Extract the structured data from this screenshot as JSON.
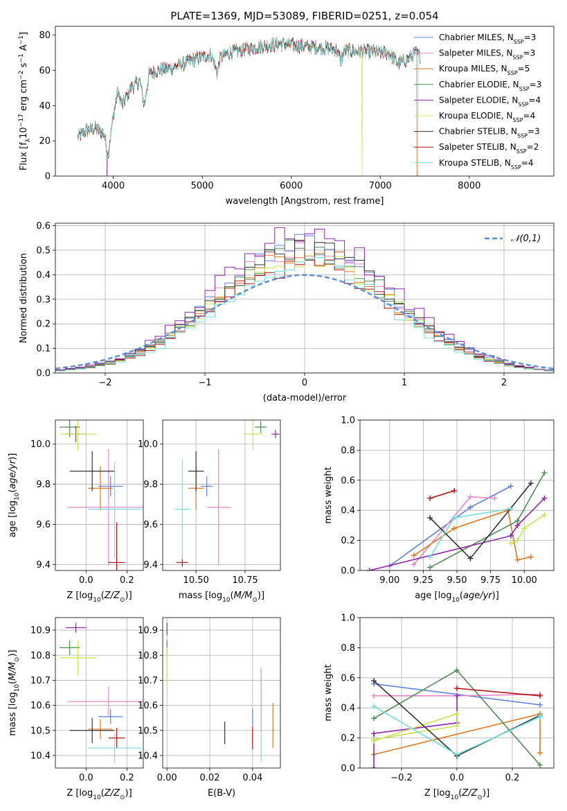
{
  "chart_data": [
    {
      "type": "line",
      "title": "PLATE=1369, MJD=53089, FIBERID=0251, z=0.054",
      "xlabel": "wavelength [Angstrom, rest frame]",
      "ylabel": "Flux [f_λ 10^-17 erg cm^-2 s^-1 A^-1]",
      "xlim": [
        3350,
        8950
      ],
      "ylim": [
        0,
        85
      ],
      "xticks": [
        4000,
        5000,
        6000,
        7000,
        8000
      ],
      "yticks": [
        0,
        20,
        40,
        60,
        80
      ],
      "grid": false,
      "legend_position": "top-right",
      "spectrum_x_range": [
        3600,
        7450
      ],
      "spectrum_shape": {
        "x": [
          3600,
          3700,
          3800,
          3900,
          3940,
          4000,
          4050,
          4100,
          4200,
          4300,
          4350,
          4400,
          4500,
          4700,
          4900,
          5100,
          5170,
          5200,
          5300,
          5500,
          5700,
          5900,
          6100,
          6300,
          6500,
          6560,
          6600,
          6800,
          7000,
          7100,
          7200,
          7300,
          7400,
          7450
        ],
        "y": [
          22,
          26,
          27,
          24,
          12,
          34,
          48,
          40,
          50,
          54,
          40,
          58,
          60,
          62,
          66,
          69,
          58,
          67,
          70,
          72,
          74,
          75,
          74,
          73,
          72,
          66,
          71,
          71,
          70,
          70,
          64,
          66,
          70,
          68
        ]
      },
      "drops": [
        {
          "x": 3930,
          "series": "Salpeter ELODIE"
        },
        {
          "x": 6795,
          "series": "Kroupa ELODIE"
        },
        {
          "x": 7415,
          "series": "Kroupa MILES"
        }
      ],
      "series": [
        {
          "name": "Chabrier MILES, N_SSP=3",
          "color": "#5b7fd8"
        },
        {
          "name": "Salpeter MILES, N_SSP=3",
          "color": "#e887c4"
        },
        {
          "name": "Kroupa MILES, N_SSP=5",
          "color": "#e0761d"
        },
        {
          "name": "Chabrier ELODIE, N_SSP=3",
          "color": "#4f8a53"
        },
        {
          "name": "Salpeter ELODIE, N_SSP=4",
          "color": "#8e22a8"
        },
        {
          "name": "Kroupa ELODIE, N_SSP=4",
          "color": "#c7e354"
        },
        {
          "name": "Chabrier STELIB, N_SSP=3",
          "color": "#333333"
        },
        {
          "name": "Salpeter STELIB, N_SSP=2",
          "color": "#b20f0f"
        },
        {
          "name": "Kroupa STELIB, N_SSP=4",
          "color": "#70dede"
        }
      ]
    },
    {
      "type": "histogram",
      "xlabel": "(data-model)/error",
      "ylabel": "Normed distribution",
      "xlim": [
        -2.5,
        2.5
      ],
      "ylim": [
        0,
        0.61
      ],
      "xticks": [
        -2,
        -1,
        0,
        1,
        2
      ],
      "yticks": [
        0.0,
        0.1,
        0.2,
        0.3,
        0.4,
        0.5,
        0.6
      ],
      "grid": true,
      "legend_position": "top-right",
      "reference_curve": {
        "label": "𝒩(0,1)",
        "mean": 0,
        "sigma": 1,
        "color": "#5b8bd8"
      },
      "bin_width": 0.1,
      "bin_range": [
        -2.5,
        2.5
      ],
      "peak_values": [
        0.52,
        0.5,
        0.49,
        0.5,
        0.58,
        0.47,
        0.51,
        0.45,
        0.43
      ],
      "series_colors": [
        "#5b7fd8",
        "#e887c4",
        "#e0761d",
        "#4f8a53",
        "#8e22a8",
        "#c7e354",
        "#333333",
        "#b20f0f",
        "#70dede"
      ]
    },
    {
      "type": "errorbar",
      "xlabel": "Z [log10(Z/Z⊙)]",
      "ylabel": "age  [log10(age/yr)]",
      "xlim": [
        -0.15,
        0.28
      ],
      "ylim": [
        9.37,
        10.12
      ],
      "xticks": [
        0.0,
        0.2
      ],
      "yticks": [
        9.4,
        9.6,
        9.8,
        10.0
      ],
      "grid": true,
      "points": [
        {
          "series": "Chabrier MILES",
          "x": 0.12,
          "y": 9.79,
          "xerr": 0.06,
          "yerr": 0.05
        },
        {
          "series": "Salpeter MILES",
          "x": 0.11,
          "y": 9.685,
          "xerr": 0.2,
          "yerr": 0.29
        },
        {
          "series": "Kroupa MILES",
          "x": 0.07,
          "y": 9.78,
          "xerr": 0.06,
          "yerr": 0.11
        },
        {
          "series": "Chabrier ELODIE",
          "x": -0.08,
          "y": 10.085,
          "xerr": 0.05,
          "yerr": 0.05
        },
        {
          "series": "Salpeter ELODIE",
          "x": -0.05,
          "y": 10.05,
          "xerr": 0.05,
          "yerr": 0.04
        },
        {
          "series": "Kroupa ELODIE",
          "x": -0.04,
          "y": 10.05,
          "xerr": 0.09,
          "yerr": 0.08
        },
        {
          "series": "Chabrier STELIB",
          "x": 0.03,
          "y": 9.865,
          "xerr": 0.11,
          "yerr": 0.1
        },
        {
          "series": "Salpeter STELIB",
          "x": 0.15,
          "y": 9.41,
          "xerr": 0.04,
          "yerr": 0.2
        },
        {
          "series": "Kroupa STELIB",
          "x": 0.14,
          "y": 9.675,
          "xerr": 0.13,
          "yerr": 0.24
        }
      ]
    },
    {
      "type": "errorbar",
      "xlabel": "mass [log10(M/M⊙)]",
      "ylabel": "",
      "xlim": [
        10.33,
        10.93
      ],
      "ylim": [
        9.37,
        10.12
      ],
      "xticks": [
        10.5,
        10.75
      ],
      "yticks": [
        9.4,
        9.6,
        9.8,
        10.0
      ],
      "grid": true,
      "points": [
        {
          "series": "Chabrier MILES",
          "x": 10.555,
          "y": 9.79,
          "xerr": 0.03,
          "yerr": 0.05
        },
        {
          "series": "Salpeter MILES",
          "x": 10.615,
          "y": 9.685,
          "xerr": 0.06,
          "yerr": 0.29
        },
        {
          "series": "Kroupa MILES",
          "x": 10.5,
          "y": 9.78,
          "xerr": 0.04,
          "yerr": 0.11
        },
        {
          "series": "Chabrier ELODIE",
          "x": 10.83,
          "y": 10.085,
          "xerr": 0.03,
          "yerr": 0.03
        },
        {
          "series": "Salpeter ELODIE",
          "x": 10.905,
          "y": 10.05,
          "xerr": 0.02,
          "yerr": 0.02
        },
        {
          "series": "Kroupa ELODIE",
          "x": 10.79,
          "y": 10.05,
          "xerr": 0.05,
          "yerr": 0.08
        },
        {
          "series": "Chabrier STELIB",
          "x": 10.5,
          "y": 9.865,
          "xerr": 0.04,
          "yerr": 0.1
        },
        {
          "series": "Salpeter STELIB",
          "x": 10.43,
          "y": 9.41,
          "xerr": 0.03,
          "yerr": 0.02
        },
        {
          "series": "Kroupa STELIB",
          "x": 10.43,
          "y": 9.675,
          "xerr": 0.04,
          "yerr": 0.25
        }
      ]
    },
    {
      "type": "line",
      "xlabel": "age  [log10(age/yr)]",
      "ylabel": "mass weight",
      "xlim": [
        8.78,
        10.22
      ],
      "ylim": [
        0,
        1
      ],
      "xticks": [
        9.0,
        9.25,
        9.5,
        9.75,
        10.0
      ],
      "yticks": [
        0.0,
        0.2,
        0.4,
        0.6,
        0.8,
        1.0
      ],
      "grid": true,
      "series": [
        {
          "name": "Chabrier MILES",
          "x": [
            9.0,
            9.6,
            9.9
          ],
          "y": [
            0.03,
            0.42,
            0.56
          ]
        },
        {
          "name": "Salpeter MILES",
          "x": [
            9.18,
            9.6,
            9.78
          ],
          "y": [
            0.04,
            0.49,
            0.48
          ]
        },
        {
          "name": "Kroupa MILES",
          "x": [
            9.18,
            9.48,
            9.88,
            9.95,
            10.05
          ],
          "y": [
            0.1,
            0.28,
            0.4,
            0.07,
            0.09
          ]
        },
        {
          "name": "Chabrier ELODIE",
          "x": [
            9.3,
            9.95,
            10.15
          ],
          "y": [
            0.02,
            0.33,
            0.65
          ]
        },
        {
          "name": "Salpeter ELODIE",
          "x": [
            8.85,
            9.9,
            9.95,
            10.15
          ],
          "y": [
            0.0,
            0.23,
            0.3,
            0.48
          ]
        },
        {
          "name": "Kroupa ELODIE",
          "x": [
            9.9,
            9.95,
            10.0,
            10.15
          ],
          "y": [
            0.18,
            0.2,
            0.28,
            0.37
          ]
        },
        {
          "name": "Chabrier STELIB",
          "x": [
            9.3,
            9.6,
            10.05
          ],
          "y": [
            0.35,
            0.08,
            0.58
          ]
        },
        {
          "name": "Salpeter STELIB",
          "x": [
            9.3,
            9.48
          ],
          "y": [
            0.48,
            0.53
          ]
        },
        {
          "name": "Kroupa STELIB",
          "x": [
            9.3,
            9.48,
            9.9
          ],
          "y": [
            0.09,
            0.35,
            0.41
          ]
        }
      ]
    },
    {
      "type": "errorbar",
      "xlabel": "Z [log10(Z/Z⊙)]",
      "ylabel": "mass [log10(M/M⊙)]",
      "xlim": [
        -0.15,
        0.28
      ],
      "ylim": [
        10.35,
        10.95
      ],
      "xticks": [
        0.0,
        0.2
      ],
      "yticks": [
        10.4,
        10.5,
        10.6,
        10.7,
        10.8,
        10.9
      ],
      "grid": true,
      "points": [
        {
          "series": "Chabrier MILES",
          "x": 0.12,
          "y": 10.555,
          "xerr": 0.06,
          "yerr": 0.03
        },
        {
          "series": "Salpeter MILES",
          "x": 0.11,
          "y": 10.615,
          "xerr": 0.2,
          "yerr": 0.06
        },
        {
          "series": "Kroupa MILES",
          "x": 0.07,
          "y": 10.505,
          "xerr": 0.06,
          "yerr": 0.04
        },
        {
          "series": "Chabrier ELODIE",
          "x": -0.08,
          "y": 10.83,
          "xerr": 0.05,
          "yerr": 0.03
        },
        {
          "series": "Salpeter ELODIE",
          "x": -0.05,
          "y": 10.91,
          "xerr": 0.05,
          "yerr": 0.02
        },
        {
          "series": "Kroupa ELODIE",
          "x": -0.04,
          "y": 10.79,
          "xerr": 0.09,
          "yerr": 0.07
        },
        {
          "series": "Chabrier STELIB",
          "x": 0.03,
          "y": 10.5,
          "xerr": 0.11,
          "yerr": 0.05
        },
        {
          "series": "Salpeter STELIB",
          "x": 0.15,
          "y": 10.47,
          "xerr": 0.04,
          "yerr": 0.04
        },
        {
          "series": "Kroupa STELIB",
          "x": 0.14,
          "y": 10.43,
          "xerr": 0.13,
          "yerr": 0.06
        }
      ]
    },
    {
      "type": "errorbar",
      "xlabel": "E(B-V)",
      "ylabel": "",
      "xlim": [
        -0.002,
        0.053
      ],
      "ylim": [
        10.35,
        10.95
      ],
      "xticks": [
        0.0,
        0.02,
        0.04
      ],
      "yticks": [
        10.4,
        10.5,
        10.6,
        10.7,
        10.8,
        10.9
      ],
      "grid": true,
      "points": [
        {
          "series": "Chabrier MILES",
          "x": 0.04,
          "y": 10.55,
          "xerr": 0.0,
          "yerr": 0.035
        },
        {
          "series": "Salpeter MILES",
          "x": 0.044,
          "y": 10.62,
          "xerr": 0.0,
          "yerr": 0.13
        },
        {
          "series": "Kroupa MILES",
          "x": 0.0495,
          "y": 10.52,
          "xerr": 0.0,
          "yerr": 0.09
        },
        {
          "series": "Chabrier ELODIE",
          "x": 0.0,
          "y": 10.83,
          "xerr": 0.0,
          "yerr": 0.03
        },
        {
          "series": "Salpeter ELODIE",
          "x": 0.0,
          "y": 10.905,
          "xerr": 0.0,
          "yerr": 0.025
        },
        {
          "series": "Kroupa ELODIE",
          "x": 0.0,
          "y": 10.76,
          "xerr": 0.0,
          "yerr": 0.07
        },
        {
          "series": "Chabrier STELIB",
          "x": 0.027,
          "y": 10.49,
          "xerr": 0.0,
          "yerr": 0.045
        },
        {
          "series": "Salpeter STELIB",
          "x": 0.04,
          "y": 10.47,
          "xerr": 0.0,
          "yerr": 0.045
        },
        {
          "series": "Kroupa STELIB",
          "x": 0.044,
          "y": 10.43,
          "xerr": 0.0,
          "yerr": 0.055
        }
      ]
    },
    {
      "type": "line",
      "xlabel": "Z [log10(Z/Z⊙)]",
      "ylabel": "mass weight",
      "xlim": [
        -0.35,
        0.35
      ],
      "ylim": [
        0,
        1
      ],
      "xticks": [
        -0.2,
        0.0,
        0.2
      ],
      "yticks": [
        0.0,
        0.2,
        0.4,
        0.6,
        0.8,
        1.0
      ],
      "grid": true,
      "series": [
        {
          "name": "Chabrier MILES",
          "x": [
            -0.3,
            0.3
          ],
          "y": [
            0.56,
            0.42
          ]
        },
        {
          "name": "Salpeter MILES",
          "x": [
            -0.3,
            0.0,
            0.3
          ],
          "y": [
            0.48,
            0.48,
            0.49
          ]
        },
        {
          "name": "Kroupa MILES",
          "x": [
            -0.3,
            0.3,
            0.3
          ],
          "y": [
            0.09,
            0.36,
            0.1
          ]
        },
        {
          "name": "Chabrier ELODIE",
          "x": [
            -0.3,
            0.0,
            0.3
          ],
          "y": [
            0.33,
            0.65,
            0.02
          ]
        },
        {
          "name": "Salpeter ELODIE",
          "x": [
            -0.3,
            -0.3,
            0.0,
            0.0
          ],
          "y": [
            0.0,
            0.23,
            0.3,
            0.48
          ]
        },
        {
          "name": "Kroupa ELODIE",
          "x": [
            -0.3,
            0.0,
            0.0,
            -0.3
          ],
          "y": [
            0.19,
            0.28,
            0.36,
            0.18
          ]
        },
        {
          "name": "Chabrier STELIB",
          "x": [
            -0.3,
            0.0,
            0.3
          ],
          "y": [
            0.58,
            0.08,
            0.35
          ]
        },
        {
          "name": "Salpeter STELIB",
          "x": [
            0.0,
            0.3
          ],
          "y": [
            0.53,
            0.48
          ]
        },
        {
          "name": "Kroupa STELIB",
          "x": [
            -0.3,
            0.0,
            0.3,
            0.3
          ],
          "y": [
            0.41,
            0.09,
            0.34,
            0.35
          ]
        }
      ]
    }
  ]
}
